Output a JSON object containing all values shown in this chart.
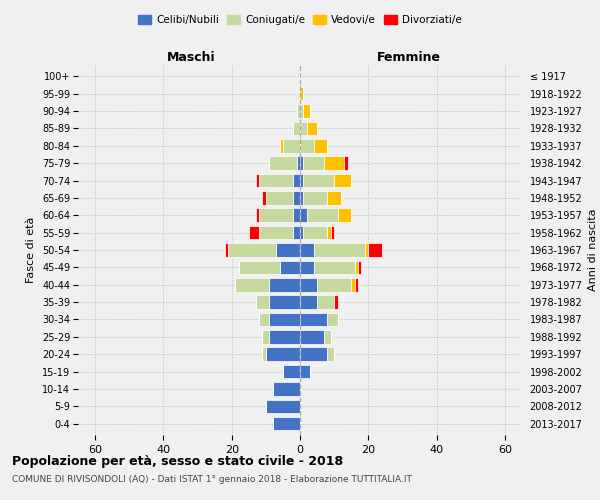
{
  "age_groups": [
    "0-4",
    "5-9",
    "10-14",
    "15-19",
    "20-24",
    "25-29",
    "30-34",
    "35-39",
    "40-44",
    "45-49",
    "50-54",
    "55-59",
    "60-64",
    "65-69",
    "70-74",
    "75-79",
    "80-84",
    "85-89",
    "90-94",
    "95-99",
    "100+"
  ],
  "birth_years": [
    "2013-2017",
    "2008-2012",
    "2003-2007",
    "1998-2002",
    "1993-1997",
    "1988-1992",
    "1983-1987",
    "1978-1982",
    "1973-1977",
    "1968-1972",
    "1963-1967",
    "1958-1962",
    "1953-1957",
    "1948-1952",
    "1943-1947",
    "1938-1942",
    "1933-1937",
    "1928-1932",
    "1923-1927",
    "1918-1922",
    "≤ 1917"
  ],
  "males": {
    "celibi": [
      8,
      10,
      8,
      5,
      10,
      9,
      9,
      9,
      9,
      6,
      7,
      2,
      2,
      2,
      2,
      1,
      0,
      0,
      0,
      0,
      0
    ],
    "coniugati": [
      0,
      0,
      0,
      0,
      1,
      2,
      3,
      4,
      10,
      12,
      14,
      10,
      10,
      8,
      10,
      8,
      5,
      2,
      1,
      0,
      0
    ],
    "vedovi": [
      0,
      0,
      0,
      0,
      0,
      0,
      0,
      0,
      0,
      0,
      0,
      0,
      0,
      0,
      0,
      0,
      1,
      0,
      0,
      0,
      0
    ],
    "divorziati": [
      0,
      0,
      0,
      0,
      0,
      0,
      0,
      0,
      0,
      0,
      1,
      3,
      1,
      1,
      1,
      0,
      0,
      0,
      0,
      0,
      0
    ]
  },
  "females": {
    "nubili": [
      0,
      0,
      0,
      3,
      8,
      7,
      8,
      5,
      5,
      4,
      4,
      1,
      2,
      1,
      1,
      1,
      0,
      0,
      0,
      0,
      0
    ],
    "coniugate": [
      0,
      0,
      0,
      0,
      2,
      2,
      3,
      5,
      10,
      12,
      15,
      7,
      9,
      7,
      9,
      6,
      4,
      2,
      1,
      0,
      0
    ],
    "vedove": [
      0,
      0,
      0,
      0,
      0,
      0,
      0,
      0,
      1,
      1,
      1,
      1,
      4,
      4,
      5,
      6,
      4,
      3,
      2,
      1,
      0
    ],
    "divorziate": [
      0,
      0,
      0,
      0,
      0,
      0,
      0,
      1,
      1,
      1,
      4,
      1,
      0,
      0,
      0,
      1,
      0,
      0,
      0,
      0,
      0
    ]
  },
  "colors": {
    "celibi": "#4472c4",
    "coniugati": "#c5d9a0",
    "vedovi": "#ffc000",
    "divorziati": "#ff0000"
  },
  "xlim": 65,
  "title_bold": "Popolazione per età, sesso e stato civile - 2018",
  "subtitle": "COMUNE DI RIVISONDOLI (AQ) - Dati ISTAT 1° gennaio 2018 - Elaborazione TUTTITALIA.IT",
  "ylabel_left": "Fasce di età",
  "ylabel_right": "Anni di nascita",
  "header_left": "Maschi",
  "header_right": "Femmine",
  "legend_labels": [
    "Celibi/Nubili",
    "Coniugati/e",
    "Vedovi/e",
    "Divorziati/e"
  ],
  "background_color": "#f0f0f0"
}
